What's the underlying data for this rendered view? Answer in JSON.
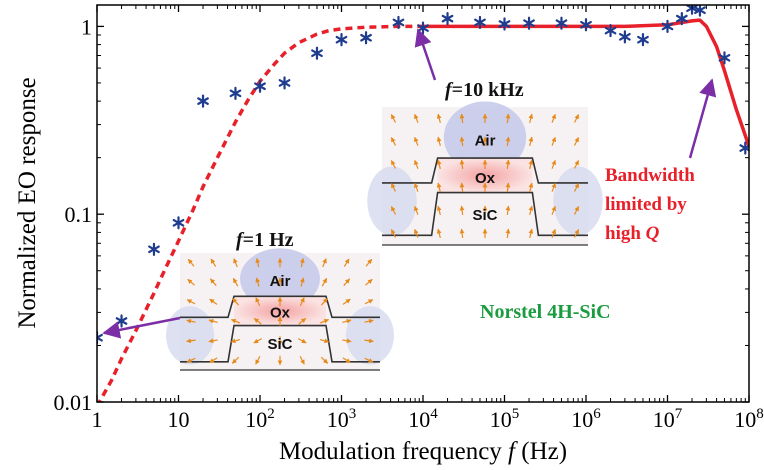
{
  "chart_data": {
    "type": "scatter",
    "xlabel_prefix": "Modulation frequency ",
    "xlabel_var": "f",
    "xlabel_unit": " (Hz)",
    "ylabel": "Normalized EO response",
    "xscale": "log",
    "yscale": "log",
    "xlim": [
      1,
      100000000
    ],
    "ylim": [
      0.01,
      1.3
    ],
    "x_tick_values": [
      1,
      10,
      100,
      1000,
      10000,
      100000,
      1000000,
      10000000,
      100000000
    ],
    "x_tick_base": [
      "1",
      "10",
      "10",
      "10",
      "10",
      "10",
      "10",
      "10",
      "10"
    ],
    "x_tick_exp": [
      "",
      "",
      "2",
      "3",
      "4",
      "5",
      "6",
      "7",
      "8"
    ],
    "y_tick_values": [
      0.01,
      0.1,
      1
    ],
    "y_tick_labels": [
      "0.01",
      "0.1",
      "1"
    ],
    "series": [
      {
        "style": "dashed-line",
        "color": "#e8202a",
        "x": [
          1,
          1.5,
          2,
          3,
          5,
          7,
          10,
          15,
          20,
          30,
          50,
          70,
          100,
          150,
          200,
          300,
          500,
          700,
          1000,
          2000,
          5000,
          10000
        ],
        "y": [
          0.0095,
          0.013,
          0.017,
          0.024,
          0.038,
          0.052,
          0.072,
          0.105,
          0.14,
          0.2,
          0.31,
          0.4,
          0.51,
          0.63,
          0.72,
          0.82,
          0.91,
          0.95,
          0.97,
          0.99,
          1.0,
          1.0
        ]
      },
      {
        "style": "solid-line",
        "color": "#e8202a",
        "x": [
          10000,
          100000,
          1000000,
          3000000,
          10000000,
          20000000,
          25000000,
          30000000,
          40000000,
          50000000,
          70000000,
          100000000
        ],
        "y": [
          1.0,
          1.0,
          1.0,
          1.0,
          1.02,
          1.07,
          1.08,
          1.0,
          0.78,
          0.58,
          0.36,
          0.23
        ]
      },
      {
        "style": "markers",
        "marker": "asterisk",
        "color": "#1f3c8f",
        "x": [
          1,
          2,
          5,
          10,
          20,
          50,
          100,
          200,
          500,
          1000,
          2000,
          5000,
          10000,
          20000,
          50000,
          100000,
          200000,
          500000,
          1000000,
          2000000,
          3000000,
          5000000,
          10000000,
          15000000,
          20000000,
          25000000,
          50000000,
          90000000
        ],
        "y": [
          0.022,
          0.027,
          0.065,
          0.09,
          0.4,
          0.44,
          0.48,
          0.5,
          0.72,
          0.85,
          0.87,
          1.05,
          0.98,
          1.1,
          1.05,
          1.03,
          1.04,
          1.04,
          1.02,
          0.95,
          0.88,
          0.85,
          1.0,
          1.1,
          1.25,
          1.22,
          0.68,
          0.225
        ]
      }
    ],
    "annotations": {
      "f10k_var": "f",
      "f10k_rest": "=10 kHz",
      "f1_var": "f",
      "f1_rest": "=1 Hz",
      "bandwidth_line1": "Bandwidth",
      "bandwidth_line2": "limited by",
      "bandwidth_line3_prefix": "high ",
      "bandwidth_line3_var": "Q",
      "material": "Norstel 4H-SiC",
      "inset_air": "Air",
      "inset_ox": "Ox",
      "inset_sic": "SiC"
    },
    "colors": {
      "curve": "#e8202a",
      "markers": "#1f3c8f",
      "arrows": "#7b2ea5",
      "material_text": "#1a9c3e",
      "bandwidth_text": "#e8202a",
      "field_arrows": "#e88a1a"
    }
  }
}
